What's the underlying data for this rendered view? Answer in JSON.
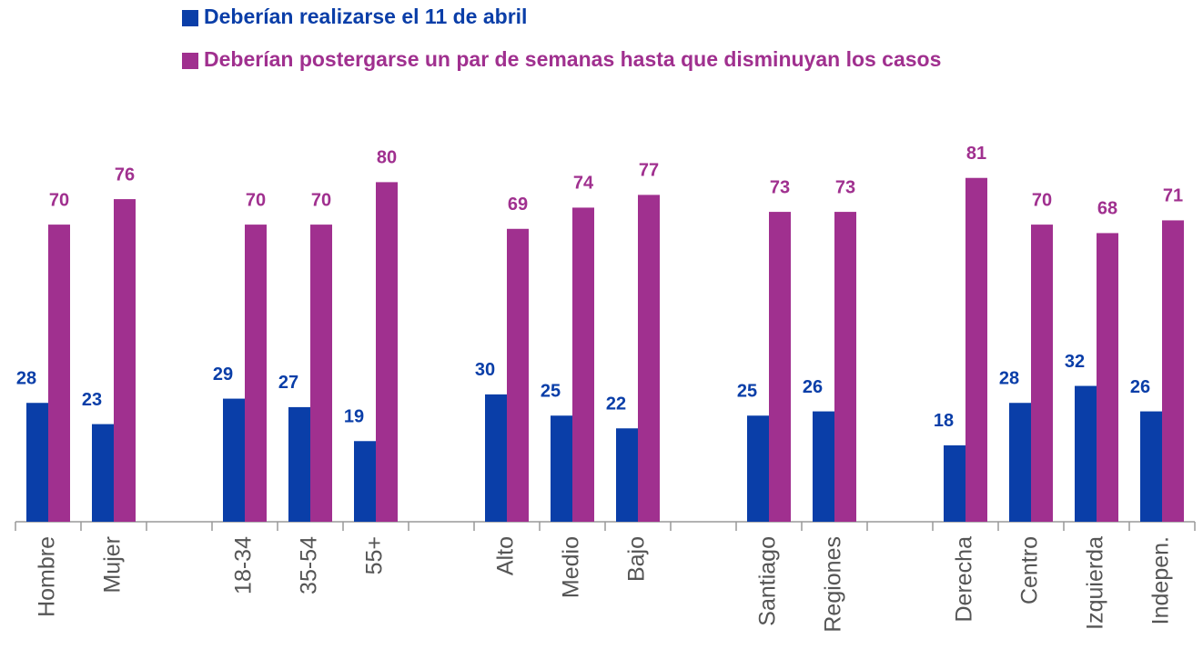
{
  "chart_data": {
    "type": "bar",
    "categories": [
      "Hombre",
      "Mujer",
      null,
      "18-34",
      "35-54",
      "55+",
      null,
      "Alto",
      "Medio",
      "Bajo",
      null,
      "Santiago",
      "Regiones",
      null,
      "Derecha",
      "Centro",
      "Izquierda",
      "Indepen."
    ],
    "series": [
      {
        "name": "Deberían realizarse el 11 de abril",
        "color": "#0a3ea8",
        "values": [
          28,
          23,
          null,
          29,
          27,
          19,
          null,
          30,
          25,
          22,
          null,
          25,
          26,
          null,
          18,
          28,
          32,
          26
        ]
      },
      {
        "name": "Deberían postergarse un par de semanas hasta que disminuyan los casos",
        "color": "#a0308f",
        "values": [
          70,
          76,
          null,
          70,
          70,
          80,
          null,
          69,
          74,
          77,
          null,
          73,
          73,
          null,
          81,
          70,
          68,
          71
        ]
      }
    ],
    "ylim": [
      0,
      100
    ],
    "legend": "top",
    "grid": false
  }
}
